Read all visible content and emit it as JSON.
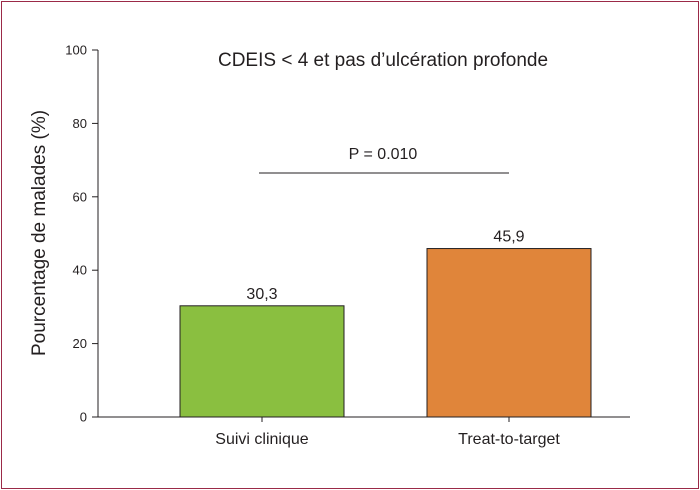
{
  "colors": {
    "frame_border": "#9b2a47",
    "axis": "#231f20",
    "bar_1": "#8abf40",
    "bar_2": "#e0853a"
  },
  "chart_data": {
    "type": "bar",
    "title": "CDEIS < 4 et pas d’ulcération profonde",
    "xlabel": "",
    "ylabel": "Pourcentage de malades (%)",
    "categories": [
      "Suivi clinique",
      "Treat-to-target"
    ],
    "values": [
      30.3,
      45.9
    ],
    "value_labels": [
      "30,3",
      "45,9"
    ],
    "bar_colors": [
      "#8abf40",
      "#e0853a"
    ],
    "ylim": [
      0,
      100
    ],
    "yticks": [
      0,
      20,
      40,
      60,
      80,
      100
    ],
    "grid": false,
    "legend": "none",
    "annotation": {
      "text": "P = 0.010"
    }
  }
}
